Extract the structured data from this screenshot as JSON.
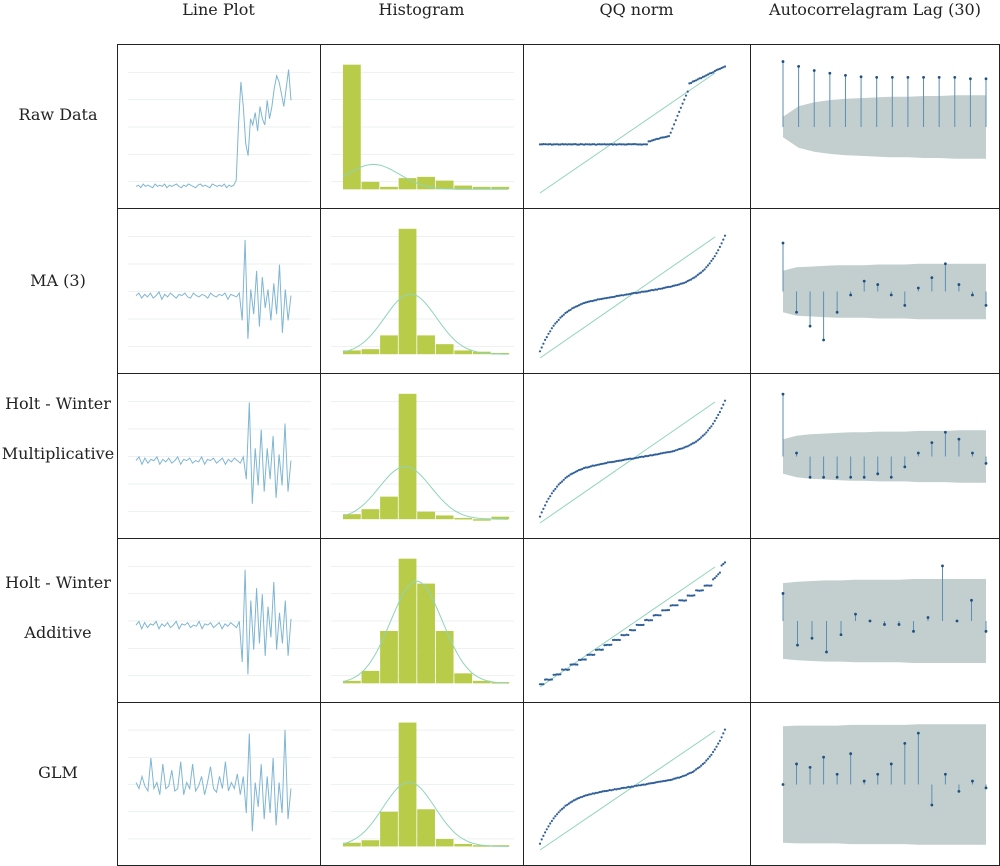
{
  "columns": [
    "Line Plot",
    "Histogram",
    "QQ norm",
    "Autocorrelagram Lag (30)"
  ],
  "rows": [
    {
      "label_lines": [
        "Raw Data"
      ],
      "key": "raw"
    },
    {
      "label_lines": [
        "MA (3)"
      ],
      "key": "ma3"
    },
    {
      "label_lines": [
        "Holt - Winter",
        "Multiplicative"
      ],
      "key": "hwm"
    },
    {
      "label_lines": [
        "Holt - Winter",
        "Additive"
      ],
      "key": "hwa"
    },
    {
      "label_lines": [
        "GLM"
      ],
      "key": "glm"
    }
  ],
  "colors": {
    "line": "#7fb6d3",
    "hist_bar": "#b9cc4a",
    "hist_curve": "#8fd4b8",
    "qq_point": "#2f5f9a",
    "qq_line": "#8fd4b8",
    "acf_band": "#c3cfcf",
    "acf_stem": "#5b8fb5",
    "acf_point": "#1f4f80"
  },
  "chart_data": [
    {
      "row": "Raw Data",
      "line_plot": {
        "type": "line",
        "values": [
          0.05,
          0.06,
          0.04,
          0.07,
          0.05,
          0.06,
          0.05,
          0.04,
          0.07,
          0.05,
          0.06,
          0.05,
          0.07,
          0.04,
          0.06,
          0.05,
          0.06,
          0.07,
          0.05,
          0.04,
          0.06,
          0.05,
          0.07,
          0.06,
          0.05,
          0.04,
          0.06,
          0.07,
          0.05,
          0.06,
          0.05,
          0.04,
          0.07,
          0.06,
          0.05,
          0.06,
          0.05,
          0.07,
          0.04,
          0.06,
          0.05,
          0.06,
          0.1,
          0.55,
          0.9,
          0.7,
          0.4,
          0.3,
          0.6,
          0.55,
          0.65,
          0.5,
          0.7,
          0.6,
          0.55,
          0.75,
          0.6,
          0.7,
          0.85,
          0.95,
          0.9,
          0.8,
          0.7,
          0.85,
          1.0,
          0.75
        ]
      },
      "histogram": {
        "type": "bar",
        "values": [
          100,
          6,
          2,
          9,
          10,
          7,
          3,
          2,
          2
        ],
        "curve_peak": 20
      },
      "qq_norm": {
        "type": "scatter",
        "shape": "plateau-step"
      },
      "acf": {
        "type": "bar",
        "values": [
          0.95,
          0.88,
          0.82,
          0.78,
          0.75,
          0.73,
          0.72,
          0.72,
          0.72,
          0.72,
          0.72,
          0.72,
          0.7,
          0.7
        ],
        "band": [
          0.15,
          0.3,
          0.36,
          0.39,
          0.41,
          0.42,
          0.43,
          0.44,
          0.44,
          0.45,
          0.45,
          0.46,
          0.46,
          0.46
        ]
      }
    },
    {
      "row": "MA (3)",
      "line_plot": {
        "type": "line",
        "values": [
          0.5,
          0.52,
          0.48,
          0.51,
          0.49,
          0.52,
          0.48,
          0.5,
          0.53,
          0.47,
          0.51,
          0.49,
          0.52,
          0.5,
          0.48,
          0.51,
          0.5,
          0.52,
          0.49,
          0.48,
          0.52,
          0.5,
          0.49,
          0.51,
          0.5,
          0.48,
          0.52,
          0.5,
          0.49,
          0.51,
          0.5,
          0.52,
          0.47,
          0.51,
          0.5,
          0.49,
          0.52,
          0.3,
          0.95,
          0.15,
          0.55,
          0.35,
          0.7,
          0.25,
          0.65,
          0.4,
          0.55,
          0.3,
          0.6,
          0.35,
          0.75,
          0.2,
          0.55,
          0.3,
          0.5
        ]
      },
      "histogram": {
        "type": "bar",
        "values": [
          3,
          4,
          15,
          100,
          15,
          8,
          3,
          2,
          1
        ],
        "curve_peak": 48
      },
      "qq_norm": {
        "type": "scatter",
        "shape": "s-curve"
      },
      "acf": {
        "type": "bar",
        "values": [
          0.7,
          -0.3,
          -0.5,
          -0.7,
          -0.3,
          -0.05,
          0.15,
          0.1,
          -0.05,
          -0.2,
          0.05,
          0.2,
          0.4,
          0.1,
          -0.05,
          -0.2
        ],
        "band": [
          0.3,
          0.35,
          0.36,
          0.37,
          0.38,
          0.38,
          0.38,
          0.39,
          0.39,
          0.39,
          0.4,
          0.4,
          0.4,
          0.4,
          0.4,
          0.4
        ]
      }
    },
    {
      "row": "Holt - Winter Multiplicative",
      "line_plot": {
        "type": "line",
        "values": [
          0.5,
          0.53,
          0.47,
          0.52,
          0.48,
          0.51,
          0.5,
          0.53,
          0.47,
          0.51,
          0.49,
          0.52,
          0.48,
          0.5,
          0.53,
          0.47,
          0.51,
          0.5,
          0.52,
          0.48,
          0.5,
          0.49,
          0.53,
          0.47,
          0.51,
          0.5,
          0.52,
          0.48,
          0.5,
          0.52,
          0.47,
          0.51,
          0.49,
          0.52,
          0.5,
          0.48,
          0.53,
          0.35,
          0.97,
          0.15,
          0.6,
          0.3,
          0.75,
          0.25,
          0.6,
          0.35,
          0.7,
          0.2,
          0.55,
          0.3,
          0.8,
          0.25,
          0.5
        ]
      },
      "histogram": {
        "type": "bar",
        "values": [
          4,
          8,
          18,
          100,
          6,
          3,
          1,
          0,
          2
        ],
        "curve_peak": 42
      },
      "qq_norm": {
        "type": "scatter",
        "shape": "s-curve"
      },
      "acf": {
        "type": "bar",
        "values": [
          0.9,
          0.05,
          -0.3,
          -0.3,
          -0.3,
          -0.3,
          -0.3,
          -0.25,
          -0.3,
          -0.15,
          0.05,
          0.2,
          0.35,
          0.25,
          0.05,
          -0.1
        ],
        "band": [
          0.25,
          0.3,
          0.32,
          0.33,
          0.34,
          0.35,
          0.35,
          0.36,
          0.36,
          0.36,
          0.37,
          0.37,
          0.37,
          0.38,
          0.38,
          0.38
        ]
      }
    },
    {
      "row": "Holt - Winter Additive",
      "line_plot": {
        "type": "line",
        "values": [
          0.5,
          0.53,
          0.47,
          0.52,
          0.48,
          0.51,
          0.5,
          0.53,
          0.47,
          0.51,
          0.49,
          0.52,
          0.48,
          0.5,
          0.53,
          0.47,
          0.51,
          0.5,
          0.52,
          0.48,
          0.5,
          0.49,
          0.53,
          0.47,
          0.51,
          0.5,
          0.52,
          0.48,
          0.5,
          0.52,
          0.47,
          0.51,
          0.49,
          0.52,
          0.5,
          0.48,
          0.53,
          0.2,
          0.95,
          0.1,
          0.7,
          0.3,
          0.8,
          0.35,
          0.75,
          0.25,
          0.65,
          0.4,
          0.85,
          0.3,
          0.6,
          0.35,
          0.7,
          0.25,
          0.55
        ]
      },
      "histogram": {
        "type": "bar",
        "values": [
          2,
          10,
          42,
          100,
          80,
          42,
          8,
          2,
          1
        ],
        "curve_peak": 82
      },
      "qq_norm": {
        "type": "scatter",
        "shape": "stepped-linear"
      },
      "acf": {
        "type": "bar",
        "values": [
          0.4,
          -0.35,
          -0.25,
          -0.45,
          -0.2,
          0.1,
          0.0,
          -0.05,
          -0.05,
          -0.15,
          0.05,
          0.8,
          0.0,
          0.3,
          -0.15
        ],
        "band": [
          0.55,
          0.57,
          0.58,
          0.59,
          0.59,
          0.6,
          0.6,
          0.6,
          0.6,
          0.61,
          0.61,
          0.61,
          0.61,
          0.61,
          0.61
        ]
      }
    },
    {
      "row": "GLM",
      "line_plot": {
        "type": "line",
        "values": [
          0.55,
          0.5,
          0.6,
          0.52,
          0.48,
          0.75,
          0.5,
          0.55,
          0.45,
          0.7,
          0.5,
          0.52,
          0.65,
          0.48,
          0.5,
          0.72,
          0.45,
          0.55,
          0.5,
          0.7,
          0.48,
          0.52,
          0.6,
          0.45,
          0.55,
          0.68,
          0.5,
          0.47,
          0.6,
          0.5,
          0.72,
          0.48,
          0.55,
          0.5,
          0.62,
          0.45,
          0.6,
          0.3,
          0.95,
          0.15,
          0.55,
          0.35,
          0.7,
          0.25,
          0.6,
          0.3,
          0.75,
          0.2,
          0.55,
          0.3,
          0.98,
          0.25,
          0.5
        ]
      },
      "histogram": {
        "type": "bar",
        "values": [
          3,
          5,
          28,
          100,
          30,
          6,
          2,
          1,
          1
        ],
        "curve_peak": 52
      },
      "qq_norm": {
        "type": "scatter",
        "shape": "s-curve"
      },
      "acf": {
        "type": "bar",
        "values": [
          0.0,
          0.3,
          0.25,
          0.4,
          0.15,
          0.45,
          0.05,
          0.15,
          0.3,
          0.6,
          0.75,
          -0.3,
          0.15,
          -0.1,
          0.05,
          -0.05
        ],
        "band": [
          0.85,
          0.86,
          0.86,
          0.86,
          0.86,
          0.87,
          0.87,
          0.87,
          0.87,
          0.87,
          0.88,
          0.88,
          0.88,
          0.88,
          0.88,
          0.88
        ]
      }
    }
  ]
}
